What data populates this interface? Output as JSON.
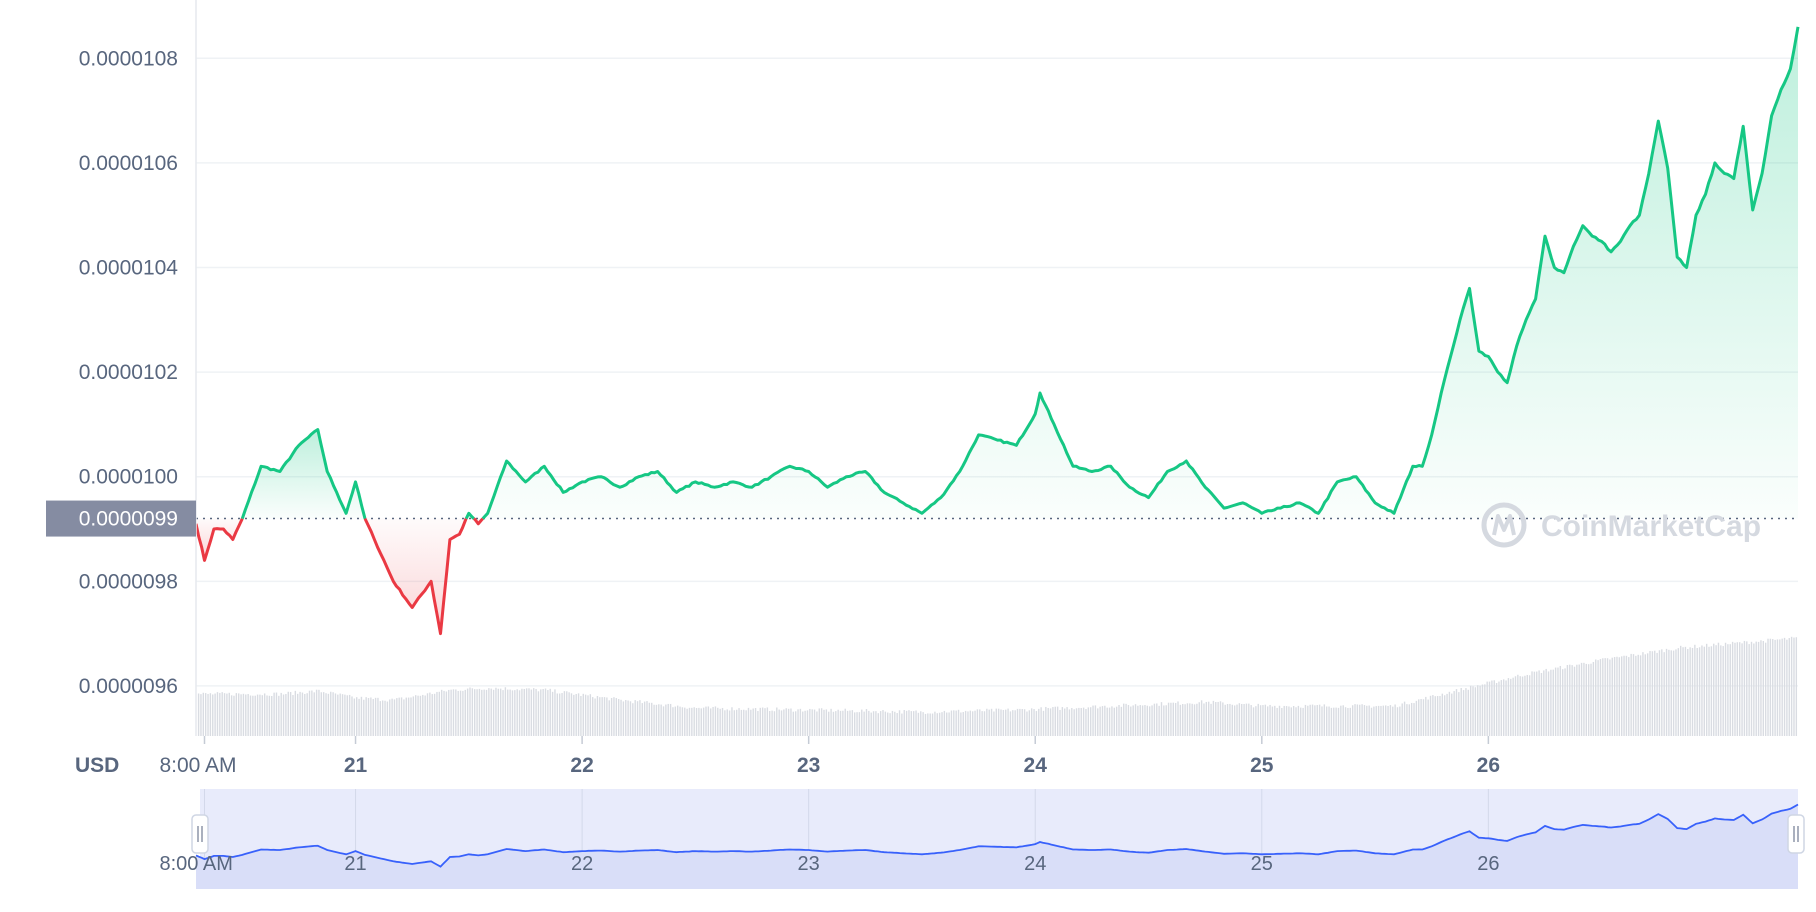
{
  "chart_data": {
    "type": "line",
    "currency_label": "USD",
    "current_price_label": "0.0000099",
    "current_price": 9.92e-06,
    "watermark": "CoinMarketCap",
    "colors": {
      "up": "#16c784",
      "down": "#ea3943",
      "volume": "#d9dce2",
      "navigator_fill": "#e8ebfb",
      "navigator_line": "#3861fb",
      "grid": "#eff2f5"
    },
    "y_ticks": [
      {
        "v": 9.6e-06,
        "label": "0.0000096"
      },
      {
        "v": 9.8e-06,
        "label": "0.0000098"
      },
      {
        "v": 1e-05,
        "label": "0.0000100"
      },
      {
        "v": 1.02e-05,
        "label": "0.0000102"
      },
      {
        "v": 1.04e-05,
        "label": "0.0000104"
      },
      {
        "v": 1.06e-05,
        "label": "0.0000106"
      },
      {
        "v": 1.08e-05,
        "label": "0.0000108"
      }
    ],
    "ylim": [
      9.51e-06,
      1.09e-05
    ],
    "x_domain_hours": [
      -0.9,
      168.8
    ],
    "x_ticks": [
      {
        "h": 0,
        "label": "8:00 AM"
      },
      {
        "h": 16,
        "label": "21"
      },
      {
        "h": 40,
        "label": "22"
      },
      {
        "h": 64,
        "label": "23"
      },
      {
        "h": 88,
        "label": "24"
      },
      {
        "h": 112,
        "label": "25"
      },
      {
        "h": 136,
        "label": "26"
      }
    ],
    "series": [
      {
        "x": [
          -0.9,
          0,
          1,
          2,
          3,
          4,
          6,
          8,
          10,
          12,
          13,
          14,
          15,
          16,
          17,
          18,
          20,
          22,
          24,
          25,
          26,
          27,
          28,
          29,
          30,
          32,
          34,
          36,
          38,
          40,
          42,
          44,
          46,
          48,
          50,
          52,
          54,
          56,
          58,
          60,
          62,
          64,
          66,
          68,
          70,
          72,
          74,
          76,
          78,
          80,
          82,
          84,
          86,
          88,
          88.5,
          90,
          92,
          94,
          96,
          98,
          100,
          102,
          104,
          106,
          108,
          110,
          112,
          114,
          116,
          118,
          120,
          122,
          124,
          126,
          128,
          129,
          130,
          131,
          132,
          133,
          134,
          135,
          136,
          137,
          138,
          139,
          140,
          141,
          142,
          143,
          144,
          145,
          146,
          147,
          148,
          149,
          150,
          151,
          152,
          153,
          154,
          155,
          156,
          157,
          158,
          159,
          160,
          161,
          162,
          163,
          164,
          165,
          166,
          167,
          168,
          168.8
        ],
        "values": [
          9.91e-06,
          9.84e-06,
          9.9e-06,
          9.9e-06,
          9.88e-06,
          9.92e-06,
          1.002e-05,
          1.001e-05,
          1.006e-05,
          1.009e-05,
          1.001e-05,
          9.97e-06,
          9.93e-06,
          9.99e-06,
          9.92e-06,
          9.88e-06,
          9.8e-06,
          9.75e-06,
          9.8e-06,
          9.7e-06,
          9.88e-06,
          9.89e-06,
          9.93e-06,
          9.91e-06,
          9.93e-06,
          1.003e-05,
          9.99e-06,
          1.002e-05,
          9.97e-06,
          9.99e-06,
          1e-05,
          9.98e-06,
          1e-05,
          1.001e-05,
          9.97e-06,
          9.99e-06,
          9.98e-06,
          9.99e-06,
          9.98e-06,
          1e-05,
          1.002e-05,
          1.001e-05,
          9.98e-06,
          1e-05,
          1.001e-05,
          9.97e-06,
          9.95e-06,
          9.93e-06,
          9.96e-06,
          1.001e-05,
          1.008e-05,
          1.007e-05,
          1.006e-05,
          1.012e-05,
          1.016e-05,
          1.01e-05,
          1.002e-05,
          1.001e-05,
          1.002e-05,
          9.98e-06,
          9.96e-06,
          1.001e-05,
          1.003e-05,
          9.98e-06,
          9.94e-06,
          9.95e-06,
          9.93e-06,
          9.94e-06,
          9.95e-06,
          9.93e-06,
          9.99e-06,
          1e-05,
          9.95e-06,
          9.93e-06,
          1.002e-05,
          1.002e-05,
          1.008e-05,
          1.016e-05,
          1.023e-05,
          1.03e-05,
          1.036e-05,
          1.024e-05,
          1.023e-05,
          1.02e-05,
          1.018e-05,
          1.025e-05,
          1.03e-05,
          1.034e-05,
          1.046e-05,
          1.04e-05,
          1.039e-05,
          1.044e-05,
          1.048e-05,
          1.046e-05,
          1.045e-05,
          1.043e-05,
          1.045e-05,
          1.048e-05,
          1.05e-05,
          1.058e-05,
          1.068e-05,
          1.059e-05,
          1.042e-05,
          1.04e-05,
          1.05e-05,
          1.054e-05,
          1.06e-05,
          1.058e-05,
          1.057e-05,
          1.067e-05,
          1.051e-05,
          1.058e-05,
          1.069e-05,
          1.074e-05,
          1.078e-05,
          1.086e-05
        ]
      }
    ]
  }
}
